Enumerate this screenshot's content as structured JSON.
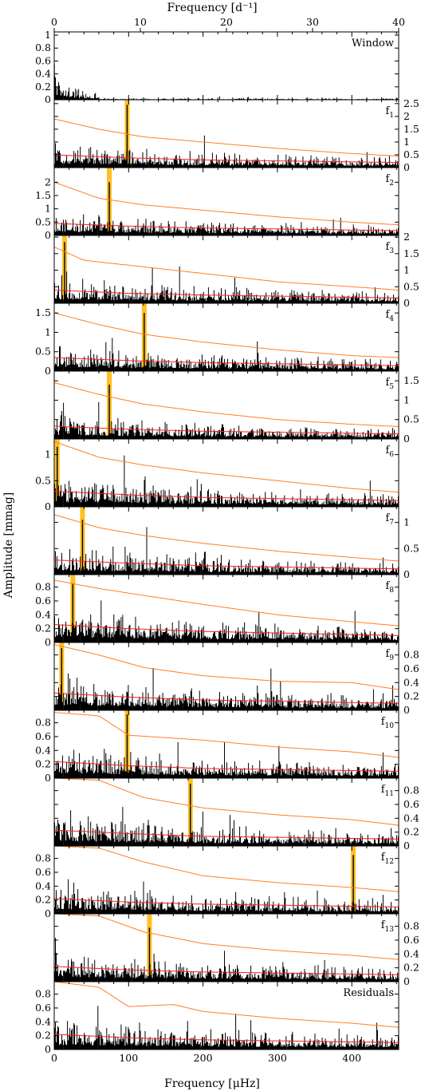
{
  "colors": {
    "spectrum": "#000000",
    "noise_upper": "#ff7f24",
    "noise_lower": "#ff1a1a",
    "marker": "#ffc020"
  },
  "chart_data": {
    "type": "line",
    "top_axis": {
      "label": "Frequency [d⁻¹]",
      "range": [
        0,
        40
      ],
      "ticks": [
        0,
        10,
        20,
        30,
        40
      ]
    },
    "xlabel": "Frequency [μHz]",
    "xlim": [
      0,
      463
    ],
    "xticks": [
      0,
      100,
      200,
      300,
      400
    ],
    "ylabel": "Amplitude [mmag]",
    "panels": [
      {
        "label": "Window",
        "sub": "",
        "ylim": [
          0,
          1.05
        ],
        "yticks": [
          "1",
          "0.8",
          "0.6",
          "0.4",
          "0.2",
          "0"
        ],
        "ytick_values": [
          1,
          0.8,
          0.6,
          0.4,
          0.2,
          0
        ],
        "tick_side": "left",
        "marker_freq": null,
        "peak_amp": 0.55,
        "noise_upper": null,
        "noise_lower": null
      },
      {
        "label": "f",
        "sub": "1",
        "ylim": [
          0,
          2.65
        ],
        "yticks": [
          "2.5",
          "2",
          "1.5",
          "1",
          "0.5",
          "0"
        ],
        "ytick_values": [
          2.5,
          2,
          1.5,
          1,
          0.5,
          0
        ],
        "tick_side": "right",
        "marker_freq": 98,
        "peak_amp": 2.45,
        "noise_upper": [
          [
            0,
            1.9
          ],
          [
            60,
            1.5
          ],
          [
            120,
            1.2
          ],
          [
            200,
            1.0
          ],
          [
            300,
            0.75
          ],
          [
            400,
            0.55
          ],
          [
            463,
            0.45
          ]
        ],
        "noise_lower": [
          [
            0,
            0.5
          ],
          [
            100,
            0.38
          ],
          [
            200,
            0.3
          ],
          [
            463,
            0.2
          ]
        ]
      },
      {
        "label": "f",
        "sub": "2",
        "ylim": [
          0,
          2.55
        ],
        "yticks": [
          "2",
          "1.5",
          "1",
          "0.5",
          "0"
        ],
        "ytick_values": [
          2,
          1.5,
          1,
          0.5,
          0
        ],
        "tick_side": "left",
        "marker_freq": 74,
        "peak_amp": 2.0,
        "noise_upper": [
          [
            0,
            2.0
          ],
          [
            60,
            1.4
          ],
          [
            120,
            1.15
          ],
          [
            200,
            0.95
          ],
          [
            300,
            0.7
          ],
          [
            400,
            0.5
          ],
          [
            463,
            0.4
          ]
        ],
        "noise_lower": [
          [
            0,
            0.45
          ],
          [
            100,
            0.35
          ],
          [
            200,
            0.28
          ],
          [
            463,
            0.18
          ]
        ]
      },
      {
        "label": "f",
        "sub": "3",
        "ylim": [
          0,
          2.05
        ],
        "yticks": [
          "2",
          "1.5",
          "1",
          "0.5",
          "0"
        ],
        "ytick_values": [
          2,
          1.5,
          1,
          0.5,
          0
        ],
        "tick_side": "right",
        "marker_freq": 14,
        "peak_amp": 1.85,
        "noise_upper": [
          [
            0,
            1.7
          ],
          [
            40,
            1.3
          ],
          [
            120,
            1.1
          ],
          [
            200,
            0.9
          ],
          [
            300,
            0.65
          ],
          [
            400,
            0.5
          ],
          [
            463,
            0.4
          ]
        ],
        "noise_lower": [
          [
            0,
            0.4
          ],
          [
            100,
            0.3
          ],
          [
            200,
            0.25
          ],
          [
            463,
            0.16
          ]
        ]
      },
      {
        "label": "f",
        "sub": "4",
        "ylim": [
          0,
          1.75
        ],
        "yticks": [
          "1.5",
          "1",
          "0.5",
          "0"
        ],
        "ytick_values": [
          1.5,
          1,
          0.5,
          0
        ],
        "tick_side": "left",
        "marker_freq": 121,
        "peak_amp": 1.5,
        "noise_upper": [
          [
            0,
            1.5
          ],
          [
            60,
            1.2
          ],
          [
            120,
            0.95
          ],
          [
            200,
            0.75
          ],
          [
            300,
            0.55
          ],
          [
            400,
            0.4
          ],
          [
            463,
            0.35
          ]
        ],
        "noise_lower": [
          [
            0,
            0.35
          ],
          [
            100,
            0.27
          ],
          [
            200,
            0.22
          ],
          [
            463,
            0.14
          ]
        ]
      },
      {
        "label": "f",
        "sub": "5",
        "ylim": [
          0,
          1.75
        ],
        "yticks": [
          "1.5",
          "1",
          "0.5",
          "0"
        ],
        "ytick_values": [
          1.5,
          1,
          0.5,
          0
        ],
        "tick_side": "right",
        "marker_freq": 74,
        "peak_amp": 1.4,
        "noise_upper": [
          [
            0,
            1.45
          ],
          [
            60,
            1.15
          ],
          [
            120,
            0.9
          ],
          [
            200,
            0.7
          ],
          [
            300,
            0.5
          ],
          [
            400,
            0.38
          ],
          [
            463,
            0.32
          ]
        ],
        "noise_lower": [
          [
            0,
            0.33
          ],
          [
            100,
            0.25
          ],
          [
            200,
            0.2
          ],
          [
            463,
            0.13
          ]
        ]
      },
      {
        "label": "f",
        "sub": "6",
        "ylim": [
          0,
          1.3
        ],
        "yticks": [
          "1",
          "0.5",
          "0"
        ],
        "ytick_values": [
          1,
          0.5,
          0
        ],
        "tick_side": "left",
        "marker_freq": 4,
        "peak_amp": 1.15,
        "noise_upper": [
          [
            0,
            1.25
          ],
          [
            60,
            0.95
          ],
          [
            120,
            0.8
          ],
          [
            200,
            0.65
          ],
          [
            300,
            0.5
          ],
          [
            400,
            0.35
          ],
          [
            463,
            0.28
          ]
        ],
        "noise_lower": [
          [
            0,
            0.3
          ],
          [
            100,
            0.23
          ],
          [
            200,
            0.18
          ],
          [
            463,
            0.12
          ]
        ]
      },
      {
        "label": "f",
        "sub": "7",
        "ylim": [
          0,
          1.3
        ],
        "yticks": [
          "1",
          "0.5",
          "0"
        ],
        "ytick_values": [
          1,
          0.5,
          0
        ],
        "tick_side": "right",
        "marker_freq": 38,
        "peak_amp": 1.05,
        "noise_upper": [
          [
            0,
            1.15
          ],
          [
            60,
            0.9
          ],
          [
            120,
            0.75
          ],
          [
            200,
            0.6
          ],
          [
            300,
            0.45
          ],
          [
            400,
            0.33
          ],
          [
            463,
            0.26
          ]
        ],
        "noise_lower": [
          [
            0,
            0.28
          ],
          [
            100,
            0.22
          ],
          [
            200,
            0.17
          ],
          [
            463,
            0.11
          ]
        ]
      },
      {
        "label": "f",
        "sub": "8",
        "ylim": [
          0,
          0.98
        ],
        "yticks": [
          "0.8",
          "0.6",
          "0.4",
          "0.2",
          "0"
        ],
        "ytick_values": [
          0.8,
          0.6,
          0.4,
          0.2,
          0
        ],
        "tick_side": "left",
        "marker_freq": 25,
        "peak_amp": 0.85,
        "noise_upper": [
          [
            0,
            0.9
          ],
          [
            60,
            0.78
          ],
          [
            120,
            0.68
          ],
          [
            200,
            0.55
          ],
          [
            300,
            0.4
          ],
          [
            400,
            0.3
          ],
          [
            463,
            0.24
          ]
        ],
        "noise_lower": [
          [
            0,
            0.26
          ],
          [
            100,
            0.2
          ],
          [
            200,
            0.16
          ],
          [
            463,
            0.1
          ]
        ]
      },
      {
        "label": "f",
        "sub": "9",
        "ylim": [
          0,
          0.98
        ],
        "yticks": [
          "0.8",
          "0.6",
          "0.4",
          "0.2",
          "0"
        ],
        "ytick_values": [
          0.8,
          0.6,
          0.4,
          0.2,
          0
        ],
        "tick_side": "right",
        "marker_freq": 10,
        "peak_amp": 0.9,
        "noise_upper": [
          [
            0,
            0.95
          ],
          [
            60,
            0.8
          ],
          [
            120,
            0.62
          ],
          [
            200,
            0.5
          ],
          [
            300,
            0.42
          ],
          [
            400,
            0.4
          ],
          [
            463,
            0.3
          ]
        ],
        "noise_lower": [
          [
            0,
            0.25
          ],
          [
            100,
            0.19
          ],
          [
            200,
            0.15
          ],
          [
            463,
            0.1
          ]
        ]
      },
      {
        "label": "f",
        "sub": "10",
        "ylim": [
          0,
          0.98
        ],
        "yticks": [
          "0.8",
          "0.6",
          "0.4",
          "0.2",
          "0"
        ],
        "ytick_values": [
          0.8,
          0.6,
          0.4,
          0.2,
          0
        ],
        "tick_side": "left",
        "marker_freq": 98,
        "peak_amp": 0.92,
        "noise_upper": [
          [
            0,
            0.95
          ],
          [
            60,
            0.9
          ],
          [
            100,
            0.62
          ],
          [
            200,
            0.55
          ],
          [
            300,
            0.45
          ],
          [
            400,
            0.38
          ],
          [
            463,
            0.3
          ]
        ],
        "noise_lower": [
          [
            0,
            0.24
          ],
          [
            100,
            0.18
          ],
          [
            200,
            0.14
          ],
          [
            463,
            0.1
          ]
        ]
      },
      {
        "label": "f",
        "sub": "11",
        "ylim": [
          0,
          0.98
        ],
        "yticks": [
          "0.8",
          "0.6",
          "0.4",
          "0.2",
          "0"
        ],
        "ytick_values": [
          0.8,
          0.6,
          0.4,
          0.2,
          0
        ],
        "tick_side": "right",
        "marker_freq": 183,
        "peak_amp": 0.9,
        "noise_upper": [
          [
            0,
            0.98
          ],
          [
            60,
            0.95
          ],
          [
            120,
            0.7
          ],
          [
            200,
            0.55
          ],
          [
            300,
            0.45
          ],
          [
            400,
            0.38
          ],
          [
            463,
            0.3
          ]
        ],
        "noise_lower": [
          [
            0,
            0.23
          ],
          [
            100,
            0.18
          ],
          [
            200,
            0.14
          ],
          [
            463,
            0.1
          ]
        ]
      },
      {
        "label": "f",
        "sub": "12",
        "ylim": [
          0,
          0.98
        ],
        "yticks": [
          "0.8",
          "0.6",
          "0.4",
          "0.2",
          "0"
        ],
        "ytick_values": [
          0.8,
          0.6,
          0.4,
          0.2,
          0
        ],
        "tick_side": "left",
        "marker_freq": 402,
        "peak_amp": 0.85,
        "noise_upper": [
          [
            0,
            0.98
          ],
          [
            60,
            0.95
          ],
          [
            120,
            0.75
          ],
          [
            200,
            0.55
          ],
          [
            300,
            0.45
          ],
          [
            400,
            0.38
          ],
          [
            463,
            0.32
          ]
        ],
        "noise_lower": [
          [
            0,
            0.22
          ],
          [
            100,
            0.17
          ],
          [
            200,
            0.14
          ],
          [
            463,
            0.1
          ]
        ]
      },
      {
        "label": "f",
        "sub": "13",
        "ylim": [
          0,
          0.98
        ],
        "yticks": [
          "0.8",
          "0.6",
          "0.4",
          "0.2",
          "0"
        ],
        "ytick_values": [
          0.8,
          0.6,
          0.4,
          0.2,
          0
        ],
        "tick_side": "right",
        "marker_freq": 128,
        "peak_amp": 0.78,
        "noise_upper": [
          [
            0,
            0.98
          ],
          [
            60,
            0.95
          ],
          [
            120,
            0.72
          ],
          [
            200,
            0.55
          ],
          [
            300,
            0.45
          ],
          [
            400,
            0.38
          ],
          [
            463,
            0.32
          ]
        ],
        "noise_lower": [
          [
            0,
            0.22
          ],
          [
            100,
            0.17
          ],
          [
            200,
            0.14
          ],
          [
            463,
            0.1
          ]
        ]
      },
      {
        "label": "Residuals",
        "sub": "",
        "ylim": [
          0,
          0.98
        ],
        "yticks": [
          "0.8",
          "0.6",
          "0.4",
          "0.2",
          "0"
        ],
        "ytick_values": [
          0.8,
          0.6,
          0.4,
          0.2,
          0
        ],
        "tick_side": "left",
        "marker_freq": null,
        "peak_amp": 0.75,
        "noise_upper": [
          [
            0,
            0.98
          ],
          [
            60,
            0.9
          ],
          [
            100,
            0.62
          ],
          [
            160,
            0.65
          ],
          [
            200,
            0.55
          ],
          [
            300,
            0.45
          ],
          [
            400,
            0.38
          ],
          [
            463,
            0.32
          ]
        ],
        "noise_lower": [
          [
            0,
            0.22
          ],
          [
            100,
            0.17
          ],
          [
            200,
            0.14
          ],
          [
            463,
            0.1
          ]
        ]
      }
    ]
  }
}
